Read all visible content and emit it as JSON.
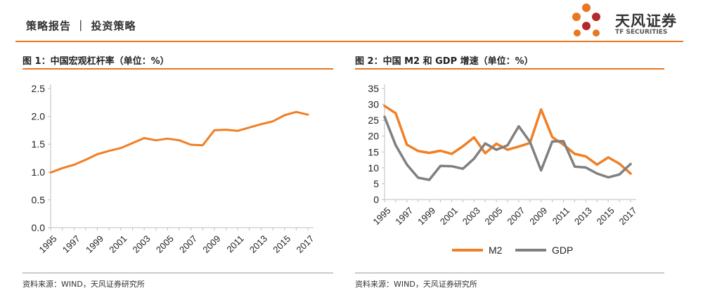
{
  "header": {
    "title": "策略报告 ｜ 投资策略"
  },
  "logo": {
    "name_cn": "天风证券",
    "name_en": "TF SECURITIES"
  },
  "colors": {
    "accent": "#e87722",
    "orange_series": "#f07f25",
    "gray_series": "#808080"
  },
  "figures": [
    {
      "title": "图 1：中国宏观杠杆率（单位：%）",
      "source": "资料来源：WIND，天风证券研究所"
    },
    {
      "title": "图 2：中国 M2 和 GDP 增速（单位：%）",
      "source": "资料来源：WIND，天风证券研究所"
    }
  ],
  "chart_data": [
    {
      "type": "line",
      "title": "中国宏观杠杆率（单位：%）",
      "x": [
        1995,
        1996,
        1997,
        1998,
        1999,
        2000,
        2001,
        2002,
        2003,
        2004,
        2005,
        2006,
        2007,
        2008,
        2009,
        2010,
        2011,
        2012,
        2013,
        2014,
        2015,
        2016,
        2017
      ],
      "x_tick_labels": [
        "1995",
        "1997",
        "1999",
        "2001",
        "2003",
        "2005",
        "2007",
        "2009",
        "2011",
        "2013",
        "2015",
        "2017"
      ],
      "series": [
        {
          "name": "宏观杠杆率",
          "values": [
            0.99,
            1.07,
            1.13,
            1.22,
            1.32,
            1.38,
            1.43,
            1.52,
            1.61,
            1.57,
            1.6,
            1.57,
            1.49,
            1.48,
            1.75,
            1.76,
            1.74,
            1.8,
            1.86,
            1.91,
            2.02,
            2.08,
            2.03
          ]
        }
      ],
      "y_ticks": [
        "0.0",
        "0.5",
        "1.0",
        "1.5",
        "2.0",
        "2.5"
      ],
      "ylim": [
        0,
        2.5
      ]
    },
    {
      "type": "line",
      "title": "中国 M2 和 GDP 增速（单位：%）",
      "x": [
        1995,
        1996,
        1997,
        1998,
        1999,
        2000,
        2001,
        2002,
        2003,
        2004,
        2005,
        2006,
        2007,
        2008,
        2009,
        2010,
        2011,
        2012,
        2013,
        2014,
        2015,
        2016,
        2017
      ],
      "x_tick_labels": [
        "1995",
        "1997",
        "1999",
        "2001",
        "2003",
        "2005",
        "2007",
        "2009",
        "2011",
        "2013",
        "2015",
        "2017"
      ],
      "series": [
        {
          "name": "M2",
          "values": [
            29.5,
            27.2,
            17.3,
            15.3,
            14.7,
            15.4,
            14.4,
            16.8,
            19.6,
            14.6,
            17.6,
            15.7,
            16.7,
            17.8,
            28.4,
            19.7,
            17.3,
            14.4,
            13.6,
            11.0,
            13.3,
            11.3,
            8.2
          ]
        },
        {
          "name": "GDP",
          "values": [
            26.1,
            17.1,
            11.0,
            6.9,
            6.2,
            10.6,
            10.5,
            9.7,
            12.9,
            17.7,
            15.7,
            17.1,
            23.1,
            18.2,
            9.2,
            18.3,
            18.4,
            10.4,
            10.1,
            8.2,
            7.0,
            7.9,
            11.2
          ]
        }
      ],
      "y_ticks": [
        "0",
        "5",
        "10",
        "15",
        "20",
        "25",
        "30",
        "35"
      ],
      "ylim": [
        0,
        35
      ],
      "legend": "bottom"
    }
  ]
}
